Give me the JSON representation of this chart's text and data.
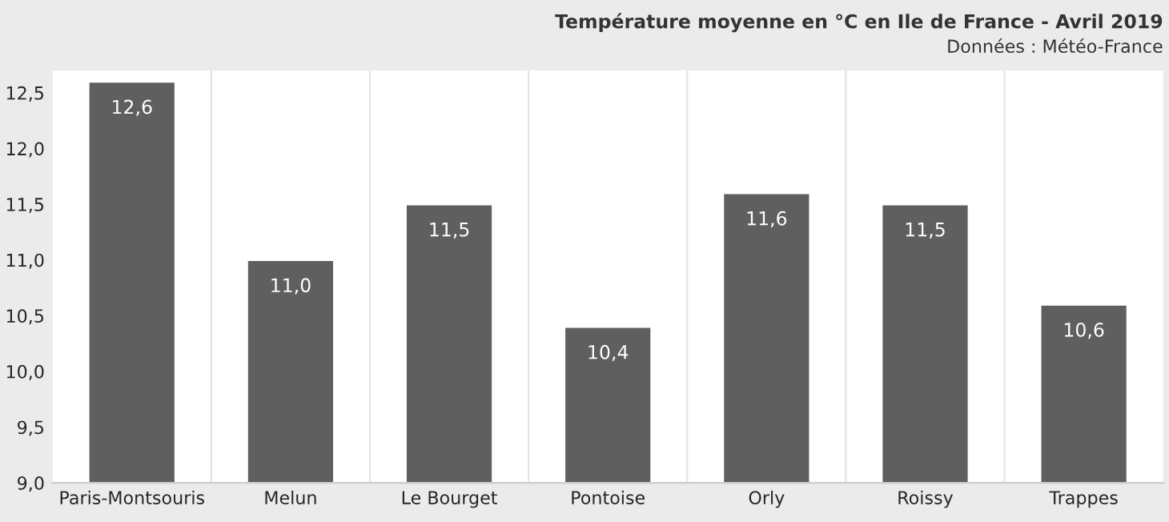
{
  "chart_data": {
    "type": "bar",
    "title": "Température moyenne en °C en Ile de France - Avril 2019",
    "subtitle": "Données : Météo-France",
    "categories": [
      "Paris-Montsouris",
      "Melun",
      "Le Bourget",
      "Pontoise",
      "Orly",
      "Roissy",
      "Trappes"
    ],
    "values": [
      12.6,
      11.0,
      11.5,
      10.4,
      11.6,
      11.5,
      10.6
    ],
    "value_labels": [
      "12,6",
      "11,0",
      "11,5",
      "10,4",
      "11,6",
      "11,5",
      "10,6"
    ],
    "color": "#5f5f5f",
    "ylim": [
      9,
      12.7
    ],
    "yticks": [
      {
        "value": 9,
        "label": "9,0"
      },
      {
        "value": 9.5,
        "label": "9,5"
      },
      {
        "value": 10,
        "label": "10,0"
      },
      {
        "value": 10.5,
        "label": "10,5"
      },
      {
        "value": 11,
        "label": "11,0"
      },
      {
        "value": 11.5,
        "label": "11,5"
      },
      {
        "value": 12,
        "label": "12,0"
      },
      {
        "value": 12.5,
        "label": "12,5"
      }
    ],
    "grid": "x",
    "legend": false
  }
}
